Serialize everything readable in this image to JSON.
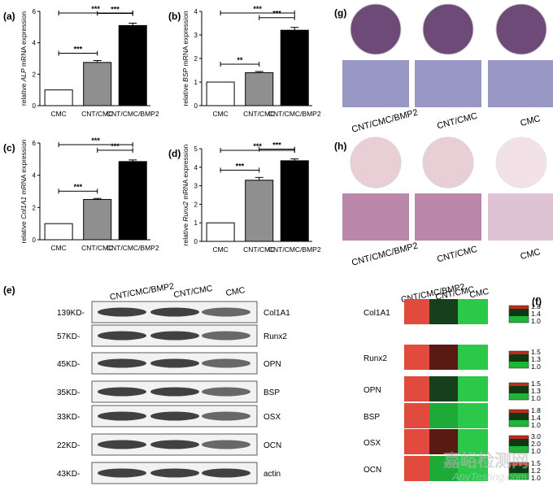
{
  "chart_data": [
    {
      "type": "bar",
      "panel": "(a)",
      "ylabel_parts": [
        "relative ",
        "ALP",
        " mRNA expression"
      ],
      "categories": [
        "CMC",
        "CNT/CMC",
        "CNT/CMC/BMP2"
      ],
      "values": [
        1.0,
        2.75,
        5.1
      ],
      "errors": [
        0.0,
        0.12,
        0.15
      ],
      "ylim": [
        0,
        6
      ],
      "yticks": [
        "0",
        "2",
        "4",
        "6"
      ],
      "sig": [
        {
          "from": 0,
          "to": 1,
          "label": "***"
        },
        {
          "from": 1,
          "to": 2,
          "label": "***"
        },
        {
          "from": 0,
          "to": 2,
          "label": "***"
        }
      ]
    },
    {
      "type": "bar",
      "panel": "(b)",
      "ylabel_parts": [
        "relative ",
        "BSP",
        " mRNA expression"
      ],
      "categories": [
        "CMC",
        "CNT/CMC",
        "CNT/CMC/BMP2"
      ],
      "values": [
        1.0,
        1.4,
        3.2
      ],
      "errors": [
        0.0,
        0.05,
        0.12
      ],
      "ylim": [
        0,
        4
      ],
      "yticks": [
        "0",
        "1",
        "2",
        "3",
        "4"
      ],
      "sig": [
        {
          "from": 0,
          "to": 1,
          "label": "**"
        },
        {
          "from": 1,
          "to": 2,
          "label": "***"
        },
        {
          "from": 0,
          "to": 2,
          "label": "***"
        }
      ]
    },
    {
      "type": "bar",
      "panel": "(c)",
      "ylabel_parts": [
        "relative ",
        "Col1A1",
        " mRNA expression"
      ],
      "categories": [
        "CMC",
        "CNT/CMC",
        "CNT/CMC/BMP2"
      ],
      "values": [
        1.0,
        2.5,
        4.85
      ],
      "errors": [
        0.0,
        0.06,
        0.1
      ],
      "ylim": [
        0,
        6
      ],
      "yticks": [
        "0",
        "2",
        "4",
        "6"
      ],
      "sig": [
        {
          "from": 0,
          "to": 1,
          "label": "***"
        },
        {
          "from": 1,
          "to": 2,
          "label": "***"
        },
        {
          "from": 0,
          "to": 2,
          "label": "***"
        }
      ]
    },
    {
      "type": "bar",
      "panel": "(d)",
      "ylabel_parts": [
        "relative ",
        "Runx2",
        " mRNA expression"
      ],
      "categories": [
        "CMC",
        "CNT/CMC",
        "CNT/CMC/BMP2"
      ],
      "values": [
        1.0,
        3.3,
        4.35
      ],
      "errors": [
        0.0,
        0.15,
        0.1
      ],
      "ylim": [
        0,
        5
      ],
      "yticks": [
        "0",
        "1",
        "2",
        "3",
        "4",
        "5"
      ],
      "sig": [
        {
          "from": 0,
          "to": 1,
          "label": "***"
        },
        {
          "from": 1,
          "to": 2,
          "label": "***"
        },
        {
          "from": 0,
          "to": 2,
          "label": "***"
        }
      ]
    }
  ],
  "staining": {
    "g": {
      "panel": "(g)",
      "labels": [
        "CNT/CMC/BMP2",
        "CNT/CMC",
        "CMC"
      ],
      "plate_color": "#6e4a78",
      "micro_color": "#8e8cbc"
    },
    "h": {
      "panel": "(h)",
      "labels": [
        "CNT/CMC/BMP2",
        "CNT/CMC",
        "CMC"
      ],
      "plate_color": "#e6c6d0",
      "micro_color": "#b47aa0"
    }
  },
  "western": {
    "panel": "(e)",
    "columns": [
      "CNT/CMC/BMP2",
      "CNT/CMC",
      "CMC"
    ],
    "rows": [
      {
        "size": "139KD-",
        "protein": "Col1A1"
      },
      {
        "size": "57KD-",
        "protein": "Runx2"
      },
      {
        "size": "45KD-",
        "protein": "OPN"
      },
      {
        "size": "35KD-",
        "protein": "BSP"
      },
      {
        "size": "33KD-",
        "protein": "OSX"
      },
      {
        "size": "22KD-",
        "protein": "OCN"
      },
      {
        "size": "43KD-",
        "protein": "actin"
      }
    ]
  },
  "heatmap": {
    "panel": "(f)",
    "type": "heatmap",
    "columns": [
      "CNT/CMC/BMP2",
      "CNT/CMC",
      "CMC"
    ],
    "rows": [
      {
        "name": "Col1A1",
        "values": [
          1.8,
          1.35,
          1.0
        ],
        "scale": [
          "1.8",
          "1.4",
          "1.0"
        ]
      },
      {
        "name": "Runx2",
        "values": [
          1.5,
          1.4,
          1.0
        ],
        "scale": [
          "1.5",
          "1.3",
          "1.0"
        ]
      },
      {
        "name": "OPN",
        "values": [
          1.5,
          1.1,
          1.0
        ],
        "scale": [
          "1.5",
          "1.3",
          "1.0"
        ]
      },
      {
        "name": "BSP",
        "values": [
          1.8,
          1.05,
          1.0
        ],
        "scale": [
          "1.8",
          "1.4",
          "1.0"
        ]
      },
      {
        "name": "OSX",
        "values": [
          3.0,
          2.0,
          1.0
        ],
        "scale": [
          "3.0",
          "2.0",
          "1.0"
        ]
      },
      {
        "name": "OCN",
        "values": [
          1.5,
          1.05,
          1.0
        ],
        "scale": [
          "1.5",
          "1.2",
          "1.0"
        ]
      }
    ]
  },
  "watermark": {
    "text": "嘉峪检测网",
    "sub": "AnyTesting.com"
  }
}
